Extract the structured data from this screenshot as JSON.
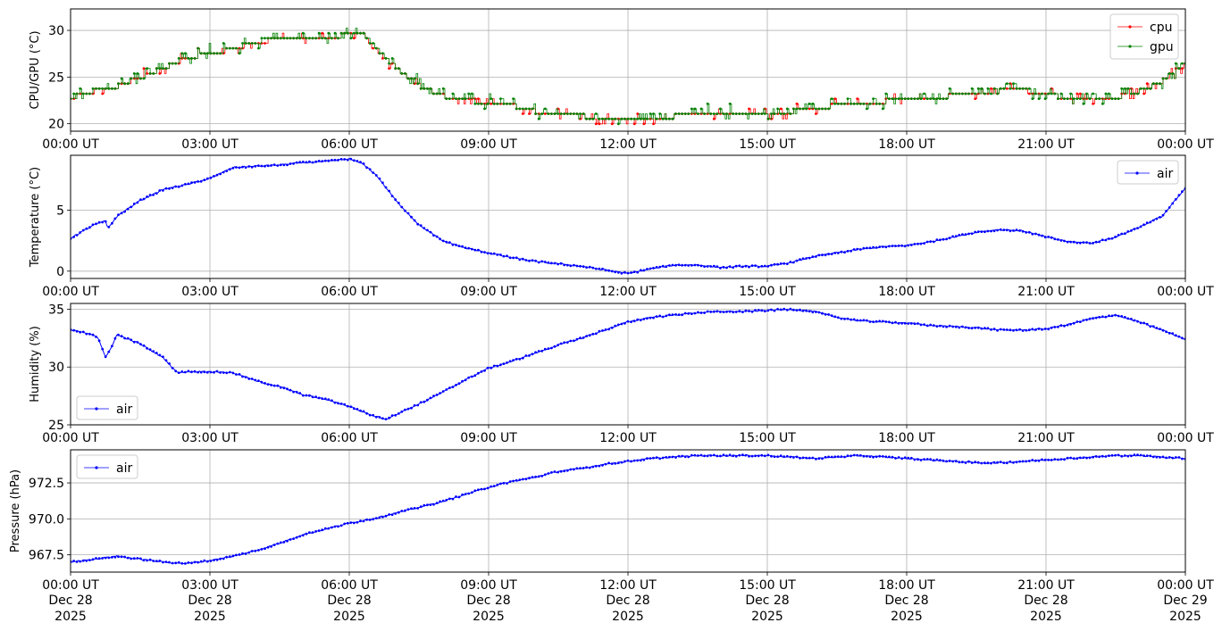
{
  "x_ticks": [
    "00:00 UT",
    "03:00 UT",
    "06:00 UT",
    "09:00 UT",
    "12:00 UT",
    "15:00 UT",
    "18:00 UT",
    "21:00 UT",
    "00:00 UT"
  ],
  "x_date_ticks": [
    [
      "Dec 28",
      "2025"
    ],
    [
      "Dec 28",
      "2025"
    ],
    [
      "Dec 28",
      "2025"
    ],
    [
      "Dec 28",
      "2025"
    ],
    [
      "Dec 28",
      "2025"
    ],
    [
      "Dec 28",
      "2025"
    ],
    [
      "Dec 28",
      "2025"
    ],
    [
      "Dec 28",
      "2025"
    ],
    [
      "Dec 29",
      "2025"
    ]
  ],
  "colors": {
    "cpu": "#ff0000",
    "gpu": "#008000",
    "air": "#0000ff",
    "grid": "#b0b0b0"
  },
  "chart_data": [
    {
      "type": "line",
      "ylabel": "CPU/GPU (°C)",
      "ylim": [
        19.2,
        32.3
      ],
      "yticks": [
        20,
        25,
        30
      ],
      "yticklabels": [
        "20",
        "25",
        "30"
      ],
      "legend": "top-right",
      "grid": true,
      "x_hours": [
        0,
        0.5,
        1,
        1.5,
        2,
        2.5,
        3,
        3.5,
        4,
        4.5,
        5,
        5.5,
        6,
        6.3,
        6.5,
        6.8,
        7,
        7.5,
        8,
        8.5,
        9,
        9.5,
        10,
        10.5,
        11,
        11.5,
        12,
        12.5,
        13,
        13.5,
        14,
        14.5,
        15,
        15.5,
        16,
        16.5,
        17,
        17.5,
        18,
        18.5,
        19,
        19.5,
        20,
        20.5,
        21,
        21.5,
        22,
        22.5,
        23,
        23.5,
        24
      ],
      "series": [
        {
          "name": "cpu",
          "values": [
            22.8,
            23.5,
            24,
            25,
            26,
            27,
            27.6,
            28,
            28.8,
            29,
            29.2,
            29.3,
            29.5,
            29.6,
            28.2,
            27,
            26,
            24,
            23,
            22.5,
            22.3,
            22,
            21.3,
            21,
            20.8,
            20.7,
            20.5,
            20.6,
            20.8,
            21,
            21,
            21,
            21.1,
            21.3,
            21.6,
            22,
            22.2,
            22.4,
            22.5,
            22.8,
            23,
            23.3,
            23.5,
            23.6,
            23.2,
            22.7,
            22.5,
            22.8,
            23.5,
            24.5,
            26.5
          ]
        },
        {
          "name": "gpu",
          "values": [
            22.8,
            23.5,
            24,
            25,
            26,
            27,
            27.6,
            28,
            28.8,
            29,
            29.2,
            29.3,
            29.5,
            29.6,
            28.2,
            27,
            26,
            24,
            23,
            22.5,
            22.3,
            22,
            21.3,
            21,
            20.8,
            20.7,
            20.5,
            20.6,
            20.8,
            21,
            21,
            21,
            21.1,
            21.3,
            21.6,
            22,
            22.2,
            22.4,
            22.5,
            22.8,
            23,
            23.3,
            23.5,
            23.6,
            23.2,
            22.7,
            22.5,
            22.8,
            23.5,
            24.5,
            26.5
          ]
        }
      ]
    },
    {
      "type": "line",
      "ylabel": "Temperature (°C)",
      "ylim": [
        -0.6,
        9.5
      ],
      "yticks": [
        0,
        5
      ],
      "yticklabels": [
        "0",
        "5"
      ],
      "legend": "top-right",
      "grid": true,
      "x_hours": [
        0,
        0.5,
        0.75,
        0.8,
        1,
        1.5,
        2,
        2.5,
        3,
        3.5,
        4,
        4.5,
        5,
        5.5,
        6,
        6.3,
        6.6,
        7,
        7.5,
        8,
        8.5,
        9,
        9.5,
        10,
        10.5,
        11,
        11.5,
        12,
        12.5,
        13,
        13.5,
        14,
        14.5,
        15,
        15.5,
        16,
        16.5,
        17,
        17.5,
        18,
        18.5,
        19,
        19.5,
        20,
        20.5,
        21,
        21.5,
        22,
        22.5,
        23,
        23.5,
        24
      ],
      "series": [
        {
          "name": "air",
          "values": [
            2.7,
            3.8,
            4.1,
            3.5,
            4.5,
            5.8,
            6.7,
            7.1,
            7.6,
            8.5,
            8.6,
            8.7,
            8.9,
            9.0,
            9.2,
            8.8,
            7.8,
            5.8,
            3.8,
            2.5,
            1.9,
            1.5,
            1.1,
            0.8,
            0.6,
            0.4,
            0.1,
            -0.2,
            0.2,
            0.5,
            0.5,
            0.3,
            0.4,
            0.4,
            0.7,
            1.2,
            1.5,
            1.8,
            2.0,
            2.1,
            2.4,
            2.8,
            3.2,
            3.4,
            3.3,
            2.8,
            2.4,
            2.3,
            2.8,
            3.6,
            4.5,
            6.8
          ]
        }
      ]
    },
    {
      "type": "line",
      "ylabel": "Humidity (%)",
      "ylim": [
        25,
        35.5
      ],
      "yticks": [
        25,
        30,
        35
      ],
      "yticklabels": [
        "25",
        "30",
        "35"
      ],
      "legend": "bottom-left",
      "grid": true,
      "x_hours": [
        0,
        0.5,
        0.6,
        0.75,
        0.85,
        1,
        1.5,
        2,
        2.3,
        2.5,
        3,
        3.5,
        4,
        4.5,
        5,
        5.5,
        6,
        6.5,
        6.8,
        7,
        7.5,
        8,
        8.5,
        9,
        9.5,
        10,
        10.5,
        11,
        11.5,
        12,
        12.5,
        13,
        13.5,
        14,
        14.5,
        15,
        15.5,
        16,
        16.5,
        17,
        17.5,
        18,
        18.5,
        19,
        19.5,
        20,
        20.5,
        21,
        21.5,
        22,
        22.5,
        23,
        23.5,
        24
      ],
      "series": [
        {
          "name": "air",
          "values": [
            33.2,
            32.8,
            32.5,
            30.8,
            31.5,
            32.8,
            32.0,
            30.8,
            29.5,
            29.6,
            29.6,
            29.5,
            28.8,
            28.3,
            27.6,
            27.2,
            26.6,
            25.8,
            25.5,
            25.9,
            26.8,
            27.8,
            28.9,
            29.9,
            30.5,
            31.2,
            31.9,
            32.5,
            33.2,
            33.9,
            34.3,
            34.5,
            34.7,
            34.8,
            34.8,
            34.9,
            35.0,
            34.8,
            34.3,
            34.0,
            33.9,
            33.8,
            33.6,
            33.5,
            33.4,
            33.2,
            33.2,
            33.3,
            33.7,
            34.2,
            34.5,
            33.9,
            33.2,
            32.4
          ]
        }
      ]
    },
    {
      "type": "line",
      "ylabel": "Pressure (hPa)",
      "ylim": [
        966.3,
        974.8
      ],
      "yticks": [
        967.5,
        970.0,
        972.5
      ],
      "yticklabels": [
        "967.5",
        "970.0",
        "972.5"
      ],
      "legend": "top-left",
      "grid": true,
      "x_hours": [
        0,
        0.5,
        1,
        1.5,
        2,
        2.5,
        3,
        3.5,
        4,
        4.5,
        5,
        5.5,
        6,
        6.5,
        7,
        7.5,
        8,
        8.5,
        9,
        9.5,
        10,
        10.5,
        11,
        11.5,
        12,
        12.5,
        13,
        13.5,
        14,
        14.5,
        15,
        15.5,
        16,
        16.5,
        17,
        17.5,
        18,
        18.5,
        19,
        19.5,
        20,
        20.5,
        21,
        21.5,
        22,
        22.5,
        23,
        23.5,
        24
      ],
      "series": [
        {
          "name": "air",
          "values": [
            967.0,
            967.2,
            967.4,
            967.2,
            967.0,
            966.9,
            967.1,
            967.4,
            967.8,
            968.3,
            968.9,
            969.3,
            969.7,
            970.0,
            970.4,
            970.8,
            971.2,
            971.7,
            972.2,
            972.6,
            972.9,
            973.3,
            973.5,
            973.8,
            974.0,
            974.2,
            974.3,
            974.4,
            974.4,
            974.4,
            974.4,
            974.3,
            974.2,
            974.3,
            974.4,
            974.3,
            974.2,
            974.1,
            974.0,
            973.9,
            973.9,
            974.0,
            974.1,
            974.2,
            974.3,
            974.4,
            974.4,
            974.3,
            974.2
          ]
        }
      ]
    }
  ]
}
